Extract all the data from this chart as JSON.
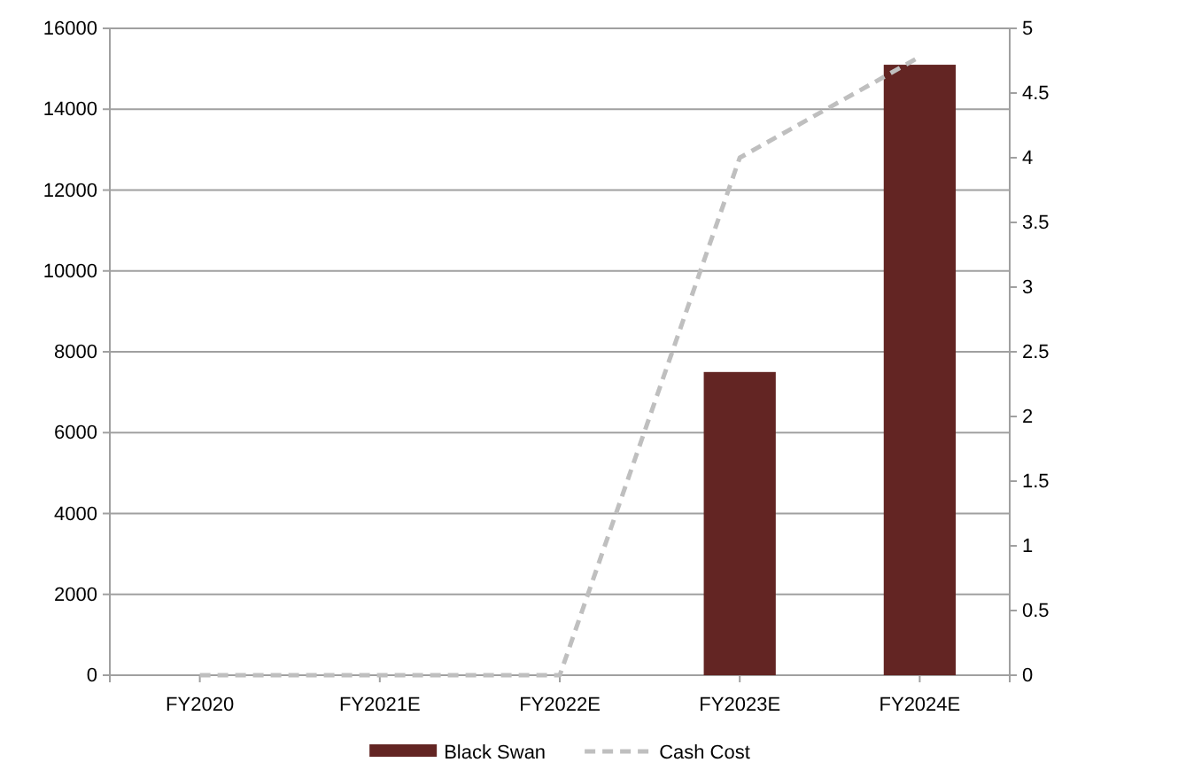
{
  "chart_data": {
    "type": "bar",
    "categories": [
      "FY2020",
      "FY2021E",
      "FY2022E",
      "FY2023E",
      "FY2024E"
    ],
    "series": [
      {
        "name": "Black Swan",
        "color": "#632523",
        "values": [
          0,
          0,
          0,
          7500,
          15100
        ]
      },
      {
        "name": "Cash Cost",
        "type": "line",
        "axis": "y2",
        "color": "#bfbfbf",
        "line_style": "dashed",
        "values": [
          0,
          0,
          0,
          4.0,
          4.78
        ]
      }
    ],
    "ylim": [
      0,
      16000
    ],
    "yticks": [
      0,
      2000,
      4000,
      6000,
      8000,
      10000,
      12000,
      14000,
      16000
    ],
    "y2lim": [
      0,
      5
    ],
    "y2ticks": [
      0,
      0.5,
      1,
      1.5,
      2,
      2.5,
      3,
      3.5,
      4,
      4.5,
      5
    ],
    "grid": "y",
    "legend": "bottom",
    "marker": "none"
  }
}
